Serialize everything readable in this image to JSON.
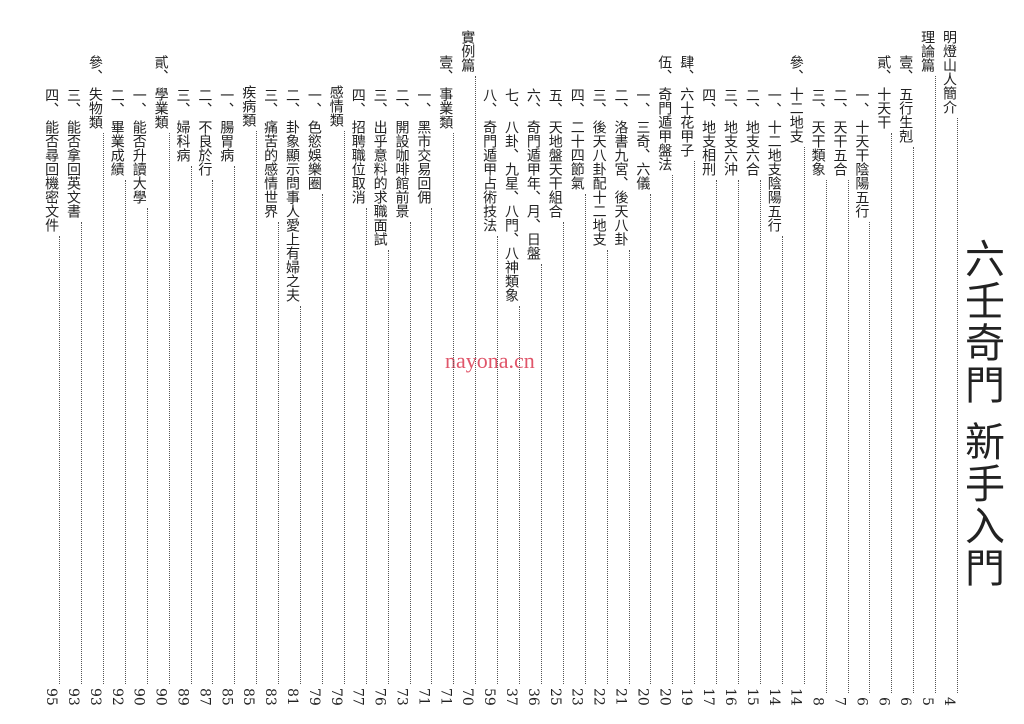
{
  "header": {
    "title": "六壬奇門 新手入門"
  },
  "watermark": "nayona.cn",
  "entries": [
    {
      "prefix": null,
      "text": "明燈山人簡介",
      "page": "4"
    },
    {
      "prefix": null,
      "text": "理論篇",
      "page": "5"
    },
    {
      "prefix": "壹、",
      "text": "五行生剋",
      "page": "6"
    },
    {
      "prefix": "貳、",
      "text": "十天干",
      "page": "6"
    },
    {
      "prefix": "一、",
      "text": "十天干陰陽五行",
      "page": "6"
    },
    {
      "prefix": "二、",
      "text": "天干五合",
      "page": "7"
    },
    {
      "prefix": "三、",
      "text": "天干類象",
      "page": "8"
    },
    {
      "prefix": "參、",
      "text": "十二地支",
      "page": "14"
    },
    {
      "prefix": "一、",
      "text": "十二地支陰陽五行",
      "page": "14"
    },
    {
      "prefix": "二、",
      "text": "地支六合",
      "page": "15"
    },
    {
      "prefix": "三、",
      "text": "地支六沖",
      "page": "16"
    },
    {
      "prefix": "四、",
      "text": "地支相刑",
      "page": "17"
    },
    {
      "prefix": "肆、",
      "text": "六十花甲子",
      "page": "19"
    },
    {
      "prefix": "伍、",
      "text": "奇門遁甲盤法",
      "page": "20"
    },
    {
      "prefix": "一、",
      "text": "三奇、六儀",
      "page": "20"
    },
    {
      "prefix": "二、",
      "text": "洛書九宮、後天八卦",
      "page": "21"
    },
    {
      "prefix": "三、",
      "text": "後天八卦配十二地支",
      "page": "22"
    },
    {
      "prefix": "四、",
      "text": "二十四節氣",
      "page": "23"
    },
    {
      "prefix": "五、",
      "text": "天地盤天干組合",
      "page": "25"
    },
    {
      "prefix": "六、",
      "text": "奇門遁甲年、月、日盤",
      "page": "36"
    },
    {
      "prefix": "七、",
      "text": "八卦、九星、八門、八神類象",
      "page": "37"
    },
    {
      "prefix": "八、",
      "text": "奇門遁甲占術技法",
      "page": "59"
    },
    {
      "prefix": null,
      "text": "實例篇",
      "page": "70"
    },
    {
      "prefix": "壹、",
      "text": "事業類",
      "page": "71"
    },
    {
      "prefix": "一、",
      "text": "黑市交易回佣",
      "page": "71"
    },
    {
      "prefix": "二、",
      "text": "開設咖啡館前景",
      "page": "73"
    },
    {
      "prefix": "三、",
      "text": "出乎意料的求職面試",
      "page": "76"
    },
    {
      "prefix": "四、",
      "text": "招聘職位取消",
      "page": "77"
    },
    {
      "prefix": null,
      "text": "感情類",
      "page": "79"
    },
    {
      "prefix": "一、",
      "text": "色慾娛樂圈",
      "page": "79"
    },
    {
      "prefix": "二、",
      "text": "卦象顯示問事人愛上有婦之夫",
      "page": "81"
    },
    {
      "prefix": "三、",
      "text": "痛苦的感情世界",
      "page": "83"
    },
    {
      "prefix": null,
      "text": "疾病類",
      "page": "85"
    },
    {
      "prefix": "一、",
      "text": "腸胃病",
      "page": "85"
    },
    {
      "prefix": "二、",
      "text": "不良於行",
      "page": "87"
    },
    {
      "prefix": "三、",
      "text": "婦科病",
      "page": "89"
    },
    {
      "prefix": "貳、",
      "text": "學業類",
      "page": "90"
    },
    {
      "prefix": "一、",
      "text": "能否升讀大學",
      "page": "90"
    },
    {
      "prefix": "二、",
      "text": "畢業成績",
      "page": "92"
    },
    {
      "prefix": "參、",
      "text": "失物類",
      "page": "93"
    },
    {
      "prefix": "三、",
      "text": "能否拿回英文書",
      "page": "93"
    },
    {
      "prefix": "四、",
      "text": "能否尋回機密文件",
      "page": "95"
    }
  ]
}
